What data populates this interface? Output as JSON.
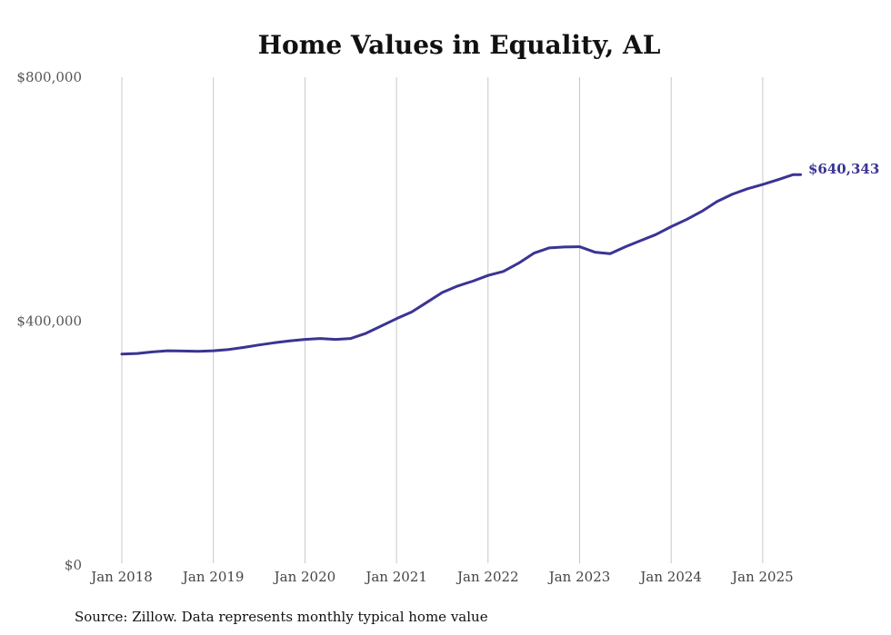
{
  "chart_data": {
    "type": "line",
    "title": "Home Values in Equality, AL",
    "xlabel": "",
    "ylabel": "",
    "ylim": [
      0,
      800000
    ],
    "yticks": [
      {
        "value": 0,
        "label": "$0"
      },
      {
        "value": 400000,
        "label": "$400,000"
      },
      {
        "value": 800000,
        "label": "$800,000"
      }
    ],
    "xticks": [
      {
        "date": "2018-01",
        "label": "Jan 2018"
      },
      {
        "date": "2019-01",
        "label": "Jan 2019"
      },
      {
        "date": "2020-01",
        "label": "Jan 2020"
      },
      {
        "date": "2021-01",
        "label": "Jan 2021"
      },
      {
        "date": "2022-01",
        "label": "Jan 2022"
      },
      {
        "date": "2023-01",
        "label": "Jan 2023"
      },
      {
        "date": "2024-01",
        "label": "Jan 2024"
      },
      {
        "date": "2025-01",
        "label": "Jan 2025"
      }
    ],
    "grid": "vertical",
    "line_color": "#3a3494",
    "series": [
      {
        "points": [
          [
            "2018-01",
            346000
          ],
          [
            "2018-03",
            347000
          ],
          [
            "2018-05",
            349500
          ],
          [
            "2018-07",
            351500
          ],
          [
            "2018-09",
            351000
          ],
          [
            "2018-11",
            350500
          ],
          [
            "2019-01",
            351500
          ],
          [
            "2019-03",
            353500
          ],
          [
            "2019-05",
            357000
          ],
          [
            "2019-07",
            361000
          ],
          [
            "2019-09",
            364500
          ],
          [
            "2019-11",
            367500
          ],
          [
            "2020-01",
            370000
          ],
          [
            "2020-03",
            371500
          ],
          [
            "2020-05",
            370000
          ],
          [
            "2020-07",
            371500
          ],
          [
            "2020-09",
            380000
          ],
          [
            "2020-11",
            392000
          ],
          [
            "2021-01",
            404000
          ],
          [
            "2021-03",
            415000
          ],
          [
            "2021-05",
            431000
          ],
          [
            "2021-07",
            447000
          ],
          [
            "2021-09",
            457500
          ],
          [
            "2021-11",
            465500
          ],
          [
            "2022-01",
            475000
          ],
          [
            "2022-03",
            481500
          ],
          [
            "2022-05",
            495000
          ],
          [
            "2022-07",
            511500
          ],
          [
            "2022-09",
            520000
          ],
          [
            "2022-11",
            521500
          ],
          [
            "2023-01",
            522000
          ],
          [
            "2023-03",
            513000
          ],
          [
            "2023-05",
            510500
          ],
          [
            "2023-07",
            522000
          ],
          [
            "2023-09",
            532000
          ],
          [
            "2023-11",
            542000
          ],
          [
            "2024-01",
            555000
          ],
          [
            "2024-03",
            566500
          ],
          [
            "2024-05",
            580000
          ],
          [
            "2024-07",
            596000
          ],
          [
            "2024-09",
            608000
          ],
          [
            "2024-11",
            617000
          ],
          [
            "2025-01",
            624000
          ],
          [
            "2025-03",
            632000
          ],
          [
            "2025-05",
            640343
          ]
        ]
      }
    ],
    "end_label": "$640,343",
    "source": "Source: Zillow. Data represents monthly typical home value"
  }
}
